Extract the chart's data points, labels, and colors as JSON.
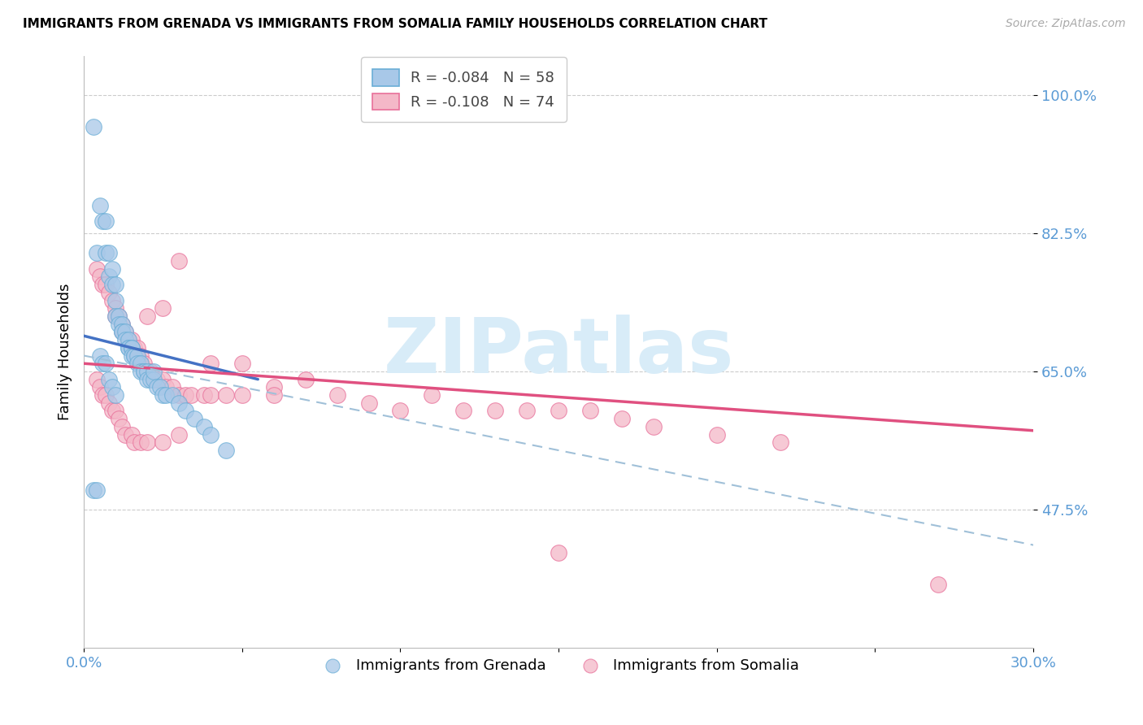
{
  "title": "IMMIGRANTS FROM GRENADA VS IMMIGRANTS FROM SOMALIA FAMILY HOUSEHOLDS CORRELATION CHART",
  "source": "Source: ZipAtlas.com",
  "ylabel": "Family Households",
  "xmin": 0.0,
  "xmax": 0.3,
  "ymin": 0.3,
  "ymax": 1.05,
  "ytick_vals": [
    0.475,
    0.65,
    0.825,
    1.0
  ],
  "ytick_labels": [
    "47.5%",
    "65.0%",
    "82.5%",
    "100.0%"
  ],
  "xtick_vals": [
    0.0,
    0.05,
    0.1,
    0.15,
    0.2,
    0.25,
    0.3
  ],
  "xtick_labels": [
    "0.0%",
    "",
    "",
    "",
    "",
    "",
    "30.0%"
  ],
  "legend_r1": "R = -0.084",
  "legend_n1": "N = 58",
  "legend_r2": "R = -0.108",
  "legend_n2": "N = 74",
  "color_grenada_fill": "#a8c8e8",
  "color_grenada_edge": "#6aaed6",
  "color_somalia_fill": "#f4b8c8",
  "color_somalia_edge": "#e8709a",
  "color_grenada_line": "#4472c4",
  "color_somalia_line": "#e05080",
  "color_dash_line": "#a0c0d8",
  "color_axis_labels": "#5b9bd5",
  "color_grid": "#cccccc",
  "watermark_text": "ZIPatlas",
  "watermark_color": "#d8ecf8",
  "grenada_x": [
    0.003,
    0.004,
    0.005,
    0.006,
    0.007,
    0.007,
    0.008,
    0.008,
    0.009,
    0.009,
    0.01,
    0.01,
    0.01,
    0.011,
    0.011,
    0.012,
    0.012,
    0.012,
    0.013,
    0.013,
    0.014,
    0.014,
    0.014,
    0.015,
    0.015,
    0.015,
    0.016,
    0.016,
    0.017,
    0.017,
    0.018,
    0.018,
    0.019,
    0.019,
    0.02,
    0.02,
    0.021,
    0.022,
    0.022,
    0.023,
    0.024,
    0.025,
    0.026,
    0.028,
    0.03,
    0.032,
    0.035,
    0.038,
    0.04,
    0.045,
    0.003,
    0.004,
    0.005,
    0.006,
    0.007,
    0.008,
    0.009,
    0.01
  ],
  "grenada_y": [
    0.96,
    0.8,
    0.86,
    0.84,
    0.84,
    0.8,
    0.8,
    0.77,
    0.78,
    0.76,
    0.76,
    0.74,
    0.72,
    0.72,
    0.71,
    0.71,
    0.7,
    0.7,
    0.7,
    0.69,
    0.69,
    0.68,
    0.68,
    0.68,
    0.68,
    0.67,
    0.67,
    0.67,
    0.67,
    0.66,
    0.66,
    0.65,
    0.65,
    0.65,
    0.65,
    0.64,
    0.64,
    0.64,
    0.65,
    0.63,
    0.63,
    0.62,
    0.62,
    0.62,
    0.61,
    0.6,
    0.59,
    0.58,
    0.57,
    0.55,
    0.5,
    0.5,
    0.67,
    0.66,
    0.66,
    0.64,
    0.63,
    0.62
  ],
  "somalia_x": [
    0.004,
    0.005,
    0.006,
    0.007,
    0.008,
    0.009,
    0.01,
    0.01,
    0.011,
    0.012,
    0.012,
    0.013,
    0.014,
    0.015,
    0.015,
    0.016,
    0.017,
    0.017,
    0.018,
    0.018,
    0.019,
    0.02,
    0.021,
    0.022,
    0.023,
    0.025,
    0.026,
    0.028,
    0.03,
    0.032,
    0.034,
    0.038,
    0.04,
    0.045,
    0.05,
    0.06,
    0.07,
    0.08,
    0.09,
    0.1,
    0.11,
    0.12,
    0.13,
    0.14,
    0.15,
    0.16,
    0.17,
    0.18,
    0.2,
    0.22,
    0.004,
    0.005,
    0.006,
    0.007,
    0.008,
    0.009,
    0.01,
    0.011,
    0.012,
    0.013,
    0.015,
    0.016,
    0.018,
    0.02,
    0.025,
    0.03,
    0.04,
    0.05,
    0.06,
    0.15,
    0.02,
    0.025,
    0.03,
    0.27
  ],
  "somalia_y": [
    0.78,
    0.77,
    0.76,
    0.76,
    0.75,
    0.74,
    0.73,
    0.72,
    0.72,
    0.71,
    0.7,
    0.7,
    0.69,
    0.69,
    0.68,
    0.68,
    0.68,
    0.67,
    0.67,
    0.66,
    0.66,
    0.65,
    0.65,
    0.64,
    0.64,
    0.64,
    0.63,
    0.63,
    0.62,
    0.62,
    0.62,
    0.62,
    0.62,
    0.62,
    0.62,
    0.63,
    0.64,
    0.62,
    0.61,
    0.6,
    0.62,
    0.6,
    0.6,
    0.6,
    0.6,
    0.6,
    0.59,
    0.58,
    0.57,
    0.56,
    0.64,
    0.63,
    0.62,
    0.62,
    0.61,
    0.6,
    0.6,
    0.59,
    0.58,
    0.57,
    0.57,
    0.56,
    0.56,
    0.72,
    0.73,
    0.79,
    0.66,
    0.66,
    0.62,
    0.42,
    0.56,
    0.56,
    0.57,
    0.38
  ],
  "grenada_line_x": [
    0.0,
    0.055
  ],
  "grenada_line_y": [
    0.695,
    0.64
  ],
  "somalia_line_x": [
    0.0,
    0.3
  ],
  "somalia_line_y": [
    0.66,
    0.575
  ],
  "dash_line_x": [
    0.0,
    0.3
  ],
  "dash_line_y": [
    0.67,
    0.43
  ]
}
